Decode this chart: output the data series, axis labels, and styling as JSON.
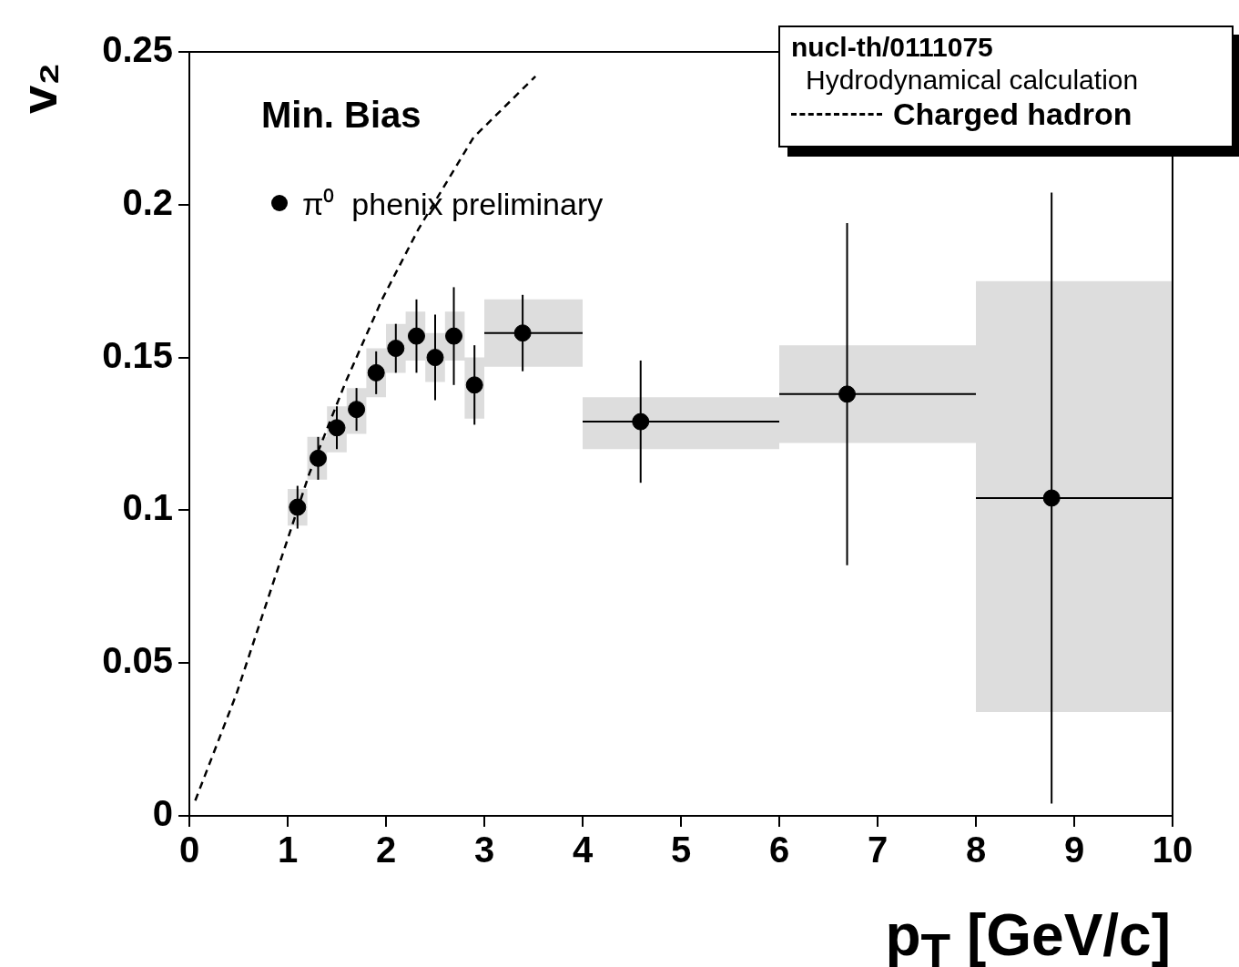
{
  "chart_data": {
    "type": "scatter",
    "xlabel": "p$_{T}$ [GeV/c]",
    "ylabel": "v₂",
    "legend_title": "nucl-th/0111075\nHydrodynamical calculation",
    "annotations": [
      "Min. Bias"
    ],
    "xlim": [
      0,
      10
    ],
    "ylim": [
      0,
      0.25
    ],
    "xticks": [
      0,
      1,
      2,
      3,
      4,
      5,
      6,
      7,
      8,
      9,
      10
    ],
    "yticks": [
      0,
      0.05,
      0.1,
      0.15,
      0.2,
      0.25
    ],
    "grid": false,
    "legend": "top right",
    "series": [
      {
        "type": "area",
        "color": "#dddddd",
        "values": [
          null,
          null,
          null,
          null,
          null,
          null,
          null,
          null,
          null,
          null,
          null,
          null,
          null,
          null,
          null,
          null,
          null,
          null,
          null,
          null,
          null,
          null,
          null,
          null,
          null,
          null,
          null,
          null
        ],
        "x": [
          1.0,
          1.2,
          1.2,
          1.4,
          1.4,
          1.6,
          1.6,
          1.8,
          1.8,
          2.0,
          2.0,
          2.2,
          2.2,
          2.4,
          2.4,
          2.6,
          2.6,
          2.8,
          2.8,
          3.0,
          3.0,
          4,
          4,
          6,
          6,
          8,
          8,
          10
        ],
        "upper": [
          0.107,
          0.107,
          0.124,
          0.124,
          0.134,
          0.134,
          0.14,
          0.14,
          0.153,
          0.153,
          0.161,
          0.161,
          0.165,
          0.165,
          0.158,
          0.158,
          0.165,
          0.165,
          0.15,
          0.15,
          0.169,
          0.169,
          0.137,
          0.137,
          0.154,
          0.154,
          0.175,
          0.175
        ],
        "lower": [
          0.095,
          0.095,
          0.11,
          0.11,
          0.119,
          0.119,
          0.125,
          0.125,
          0.137,
          0.137,
          0.145,
          0.145,
          0.149,
          0.149,
          0.142,
          0.142,
          0.149,
          0.149,
          0.13,
          0.13,
          0.147,
          0.147,
          0.12,
          0.12,
          0.122,
          0.122,
          0.034,
          0.034
        ]
      },
      {
        "type": "line",
        "name": "Charged hadron",
        "color": "#000000",
        "line_style": "dashed",
        "marker": "none",
        "x": [
          0.06,
          0.48,
          0.85,
          1.22,
          1.59,
          1.96,
          2.33,
          2.89,
          3.52
        ],
        "values": [
          0.005,
          0.04,
          0.076,
          0.112,
          0.142,
          0.169,
          0.192,
          0.222,
          0.242
        ]
      },
      {
        "type": "scatter",
        "name": "π⁰  phenix preliminary",
        "color": "#000000",
        "marker": "circle",
        "x": [
          1.1,
          1.31,
          1.5,
          1.7,
          1.9,
          2.1,
          2.31,
          2.5,
          2.69,
          2.9,
          3.39,
          4.59,
          6.69,
          8.77
        ],
        "values": [
          0.101,
          0.117,
          0.127,
          0.133,
          0.145,
          0.153,
          0.157,
          0.15,
          0.157,
          0.141,
          0.158,
          0.129,
          0.138,
          0.104
        ],
        "errors": [
          0.007,
          0.007,
          0.007,
          0.007,
          0.007,
          0.008,
          0.012,
          0.014,
          0.016,
          0.013,
          0.0125,
          0.02,
          0.056,
          0.1
        ],
        "xerrors": [
          null,
          null,
          null,
          null,
          null,
          null,
          null,
          null,
          null,
          null,
          [
            3,
            4
          ],
          [
            4,
            6
          ],
          [
            6,
            8
          ],
          [
            8,
            10
          ]
        ]
      }
    ]
  }
}
